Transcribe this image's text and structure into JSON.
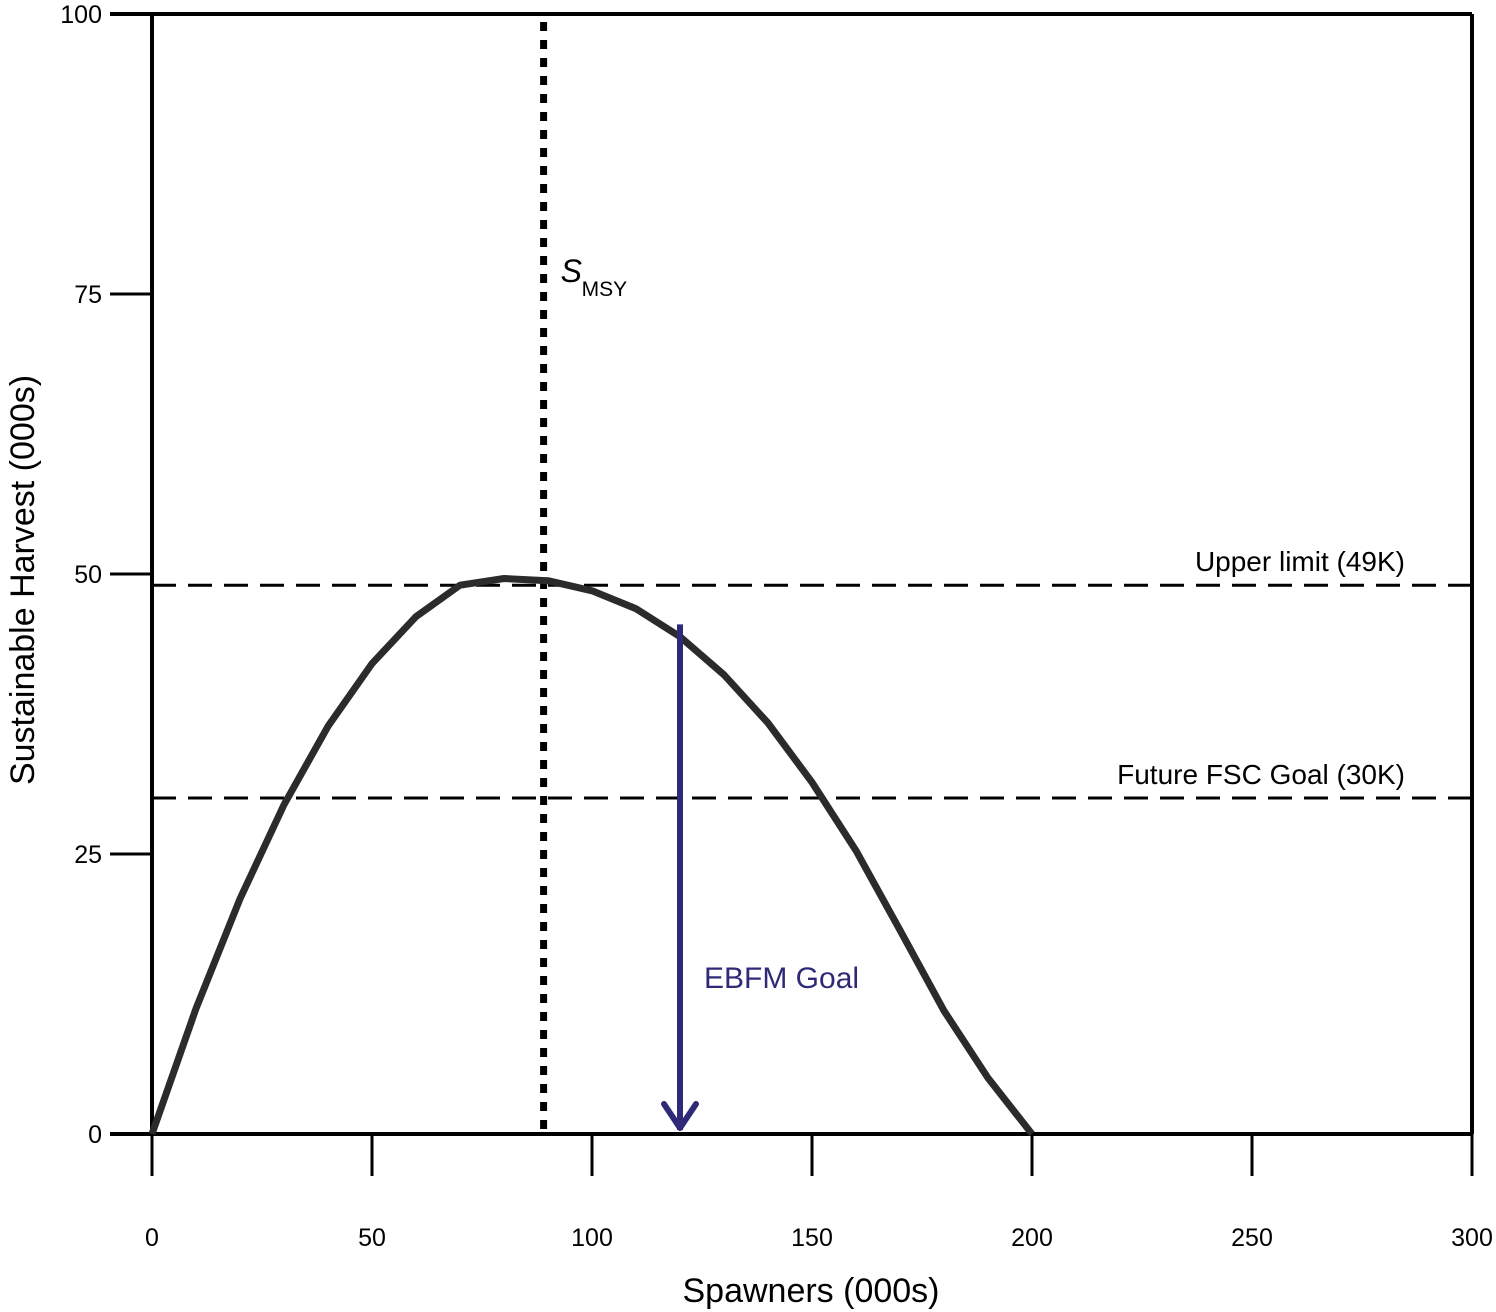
{
  "chart_data": {
    "type": "line",
    "xlabel": "Spawners (000s)",
    "ylabel": "Sustainable Harvest (000s)",
    "xlim": [
      0,
      300
    ],
    "ylim": [
      0,
      100
    ],
    "x_ticks": [
      0,
      50,
      100,
      150,
      200,
      250,
      300
    ],
    "y_ticks": [
      0,
      25,
      50,
      75,
      100
    ],
    "x_tick_labels": [
      "0",
      "50",
      "100",
      "150",
      "200",
      "250",
      "300"
    ],
    "y_tick_labels": [
      "0",
      "25",
      "50",
      "75",
      "100"
    ],
    "grid": false,
    "legend": "none",
    "series": [
      {
        "x": [
          0,
          10,
          20,
          30,
          40,
          50,
          60,
          70,
          80,
          90,
          100,
          110,
          120,
          130,
          140,
          150,
          160,
          170,
          180,
          190,
          200
        ],
        "y": [
          0,
          11.2,
          21.0,
          29.4,
          36.4,
          42.0,
          46.2,
          49.0,
          49.6,
          49.4,
          48.5,
          46.9,
          44.4,
          41.0,
          36.7,
          31.4,
          25.3,
          18.2,
          11.0,
          5.0,
          0
        ],
        "color": "#2b2b2b"
      }
    ],
    "reference_lines": [
      {
        "orientation": "horizontal",
        "y": 49,
        "style": "dashed",
        "color": "#000000",
        "label": "Upper limit (49K)"
      },
      {
        "orientation": "horizontal",
        "y": 30,
        "style": "dashed",
        "color": "#000000",
        "label": "Future FSC Goal (30K)"
      },
      {
        "orientation": "vertical",
        "x": 89,
        "style": "dotted",
        "color": "#000000",
        "label_main": "S",
        "label_sub": "MSY"
      }
    ],
    "arrow": {
      "x": 120,
      "y_start": 45.5,
      "y_end": 0,
      "color": "#2e2a78",
      "label": "EBFM Goal"
    }
  }
}
